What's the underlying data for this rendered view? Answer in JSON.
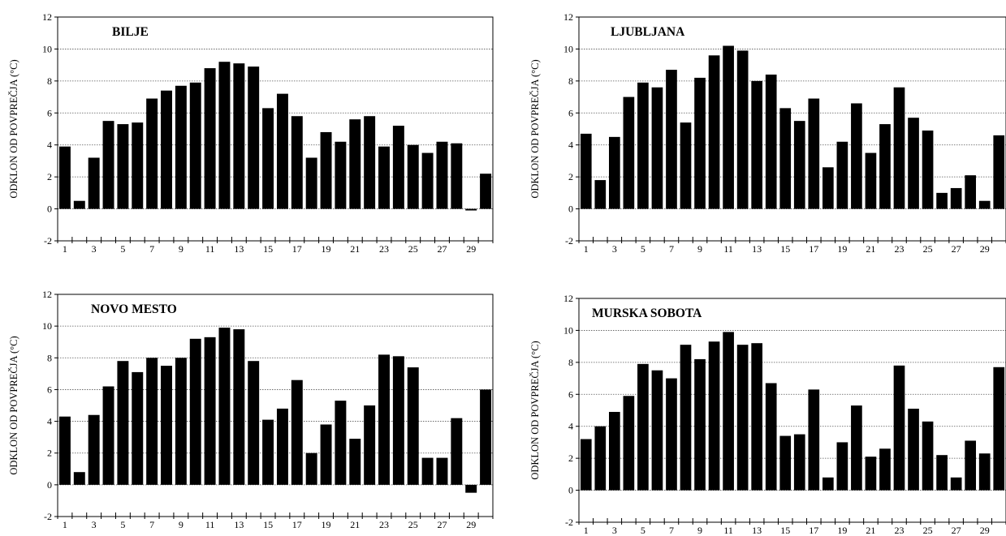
{
  "chart_data": [
    {
      "type": "bar",
      "title": "BILJE",
      "ylabel": "ODKLON OD POVPREČJA (°C)",
      "xlabel": "",
      "ylim": [
        -2,
        12
      ],
      "yticks": [
        "-2",
        "0",
        "2",
        "4",
        "6",
        "8",
        "10",
        "12"
      ],
      "xtick_labels": [
        "1",
        "3",
        "5",
        "7",
        "9",
        "11",
        "13",
        "15",
        "17",
        "19",
        "21",
        "23",
        "25",
        "27",
        "29"
      ],
      "x": [
        1,
        2,
        3,
        4,
        5,
        6,
        7,
        8,
        9,
        10,
        11,
        12,
        13,
        14,
        15,
        16,
        17,
        18,
        19,
        20,
        21,
        22,
        23,
        24,
        25,
        26,
        27,
        28,
        29,
        30
      ],
      "values": [
        3.9,
        0.5,
        3.2,
        5.5,
        5.3,
        5.4,
        6.9,
        7.4,
        7.7,
        7.9,
        8.8,
        9.2,
        9.1,
        8.9,
        6.3,
        7.2,
        5.8,
        3.2,
        4.8,
        4.2,
        5.6,
        5.8,
        3.9,
        5.2,
        4.0,
        3.5,
        4.2,
        4.1,
        -0.1,
        2.2
      ],
      "grid": "horizontal dotted",
      "bar_color": "#000000"
    },
    {
      "type": "bar",
      "title": "LJUBLJANA",
      "ylabel": "ODKLON OD POVPREČJA (°C)",
      "xlabel": "",
      "ylim": [
        -2,
        12
      ],
      "yticks": [
        "-2",
        "0",
        "2",
        "4",
        "6",
        "8",
        "10",
        "12"
      ],
      "xtick_labels": [
        "1",
        "3",
        "5",
        "7",
        "9",
        "11",
        "13",
        "15",
        "17",
        "19",
        "21",
        "23",
        "25",
        "27",
        "29"
      ],
      "x": [
        1,
        2,
        3,
        4,
        5,
        6,
        7,
        8,
        9,
        10,
        11,
        12,
        13,
        14,
        15,
        16,
        17,
        18,
        19,
        20,
        21,
        22,
        23,
        24,
        25,
        26,
        27,
        28,
        29,
        30
      ],
      "values": [
        4.7,
        1.8,
        4.5,
        7.0,
        7.9,
        7.6,
        8.7,
        5.4,
        8.2,
        9.6,
        10.2,
        9.9,
        8.0,
        8.4,
        6.3,
        5.5,
        6.9,
        2.6,
        4.2,
        6.6,
        3.5,
        5.3,
        7.6,
        5.7,
        4.9,
        1.0,
        1.3,
        2.1,
        0.5,
        4.6
      ],
      "grid": "horizontal dotted",
      "bar_color": "#000000"
    },
    {
      "type": "bar",
      "title": "NOVO MESTO",
      "ylabel": "ODKLON OD POVPREČJA (°C)",
      "xlabel": "",
      "ylim": [
        -2,
        12
      ],
      "yticks": [
        "-2",
        "0",
        "2",
        "4",
        "6",
        "8",
        "10",
        "12"
      ],
      "xtick_labels": [
        "1",
        "3",
        "5",
        "7",
        "9",
        "11",
        "13",
        "15",
        "17",
        "19",
        "21",
        "23",
        "25",
        "27",
        "29"
      ],
      "x": [
        1,
        2,
        3,
        4,
        5,
        6,
        7,
        8,
        9,
        10,
        11,
        12,
        13,
        14,
        15,
        16,
        17,
        18,
        19,
        20,
        21,
        22,
        23,
        24,
        25,
        26,
        27,
        28,
        29,
        30
      ],
      "values": [
        4.3,
        0.8,
        4.4,
        6.2,
        7.8,
        7.1,
        8.0,
        7.5,
        8.0,
        9.2,
        9.3,
        9.9,
        9.8,
        7.8,
        4.1,
        4.8,
        6.6,
        2.0,
        3.8,
        5.3,
        2.9,
        5.0,
        8.2,
        8.1,
        7.4,
        1.7,
        1.7,
        4.2,
        -0.5,
        6.0
      ],
      "grid": "horizontal dotted",
      "bar_color": "#000000"
    },
    {
      "type": "bar",
      "title": "MURSKA SOBOTA",
      "ylabel": "ODKLON OD POVPREČJA (°C)",
      "xlabel": "",
      "ylim": [
        -2,
        12
      ],
      "yticks": [
        "-2",
        "0",
        "2",
        "4",
        "6",
        "8",
        "10",
        "12"
      ],
      "xtick_labels": [
        "1",
        "3",
        "5",
        "7",
        "9",
        "11",
        "13",
        "15",
        "17",
        "19",
        "21",
        "23",
        "25",
        "27",
        "29"
      ],
      "x": [
        1,
        2,
        3,
        4,
        5,
        6,
        7,
        8,
        9,
        10,
        11,
        12,
        13,
        14,
        15,
        16,
        17,
        18,
        19,
        20,
        21,
        22,
        23,
        24,
        25,
        26,
        27,
        28,
        29,
        30
      ],
      "values": [
        3.2,
        4.0,
        4.9,
        5.9,
        7.9,
        7.5,
        7.0,
        9.1,
        8.2,
        9.3,
        9.9,
        9.1,
        9.2,
        6.7,
        3.4,
        3.5,
        6.3,
        0.8,
        3.0,
        5.3,
        2.1,
        2.6,
        7.8,
        5.1,
        4.3,
        2.2,
        0.8,
        3.1,
        2.3,
        7.7
      ],
      "grid": "horizontal dotted",
      "bar_color": "#000000"
    }
  ]
}
